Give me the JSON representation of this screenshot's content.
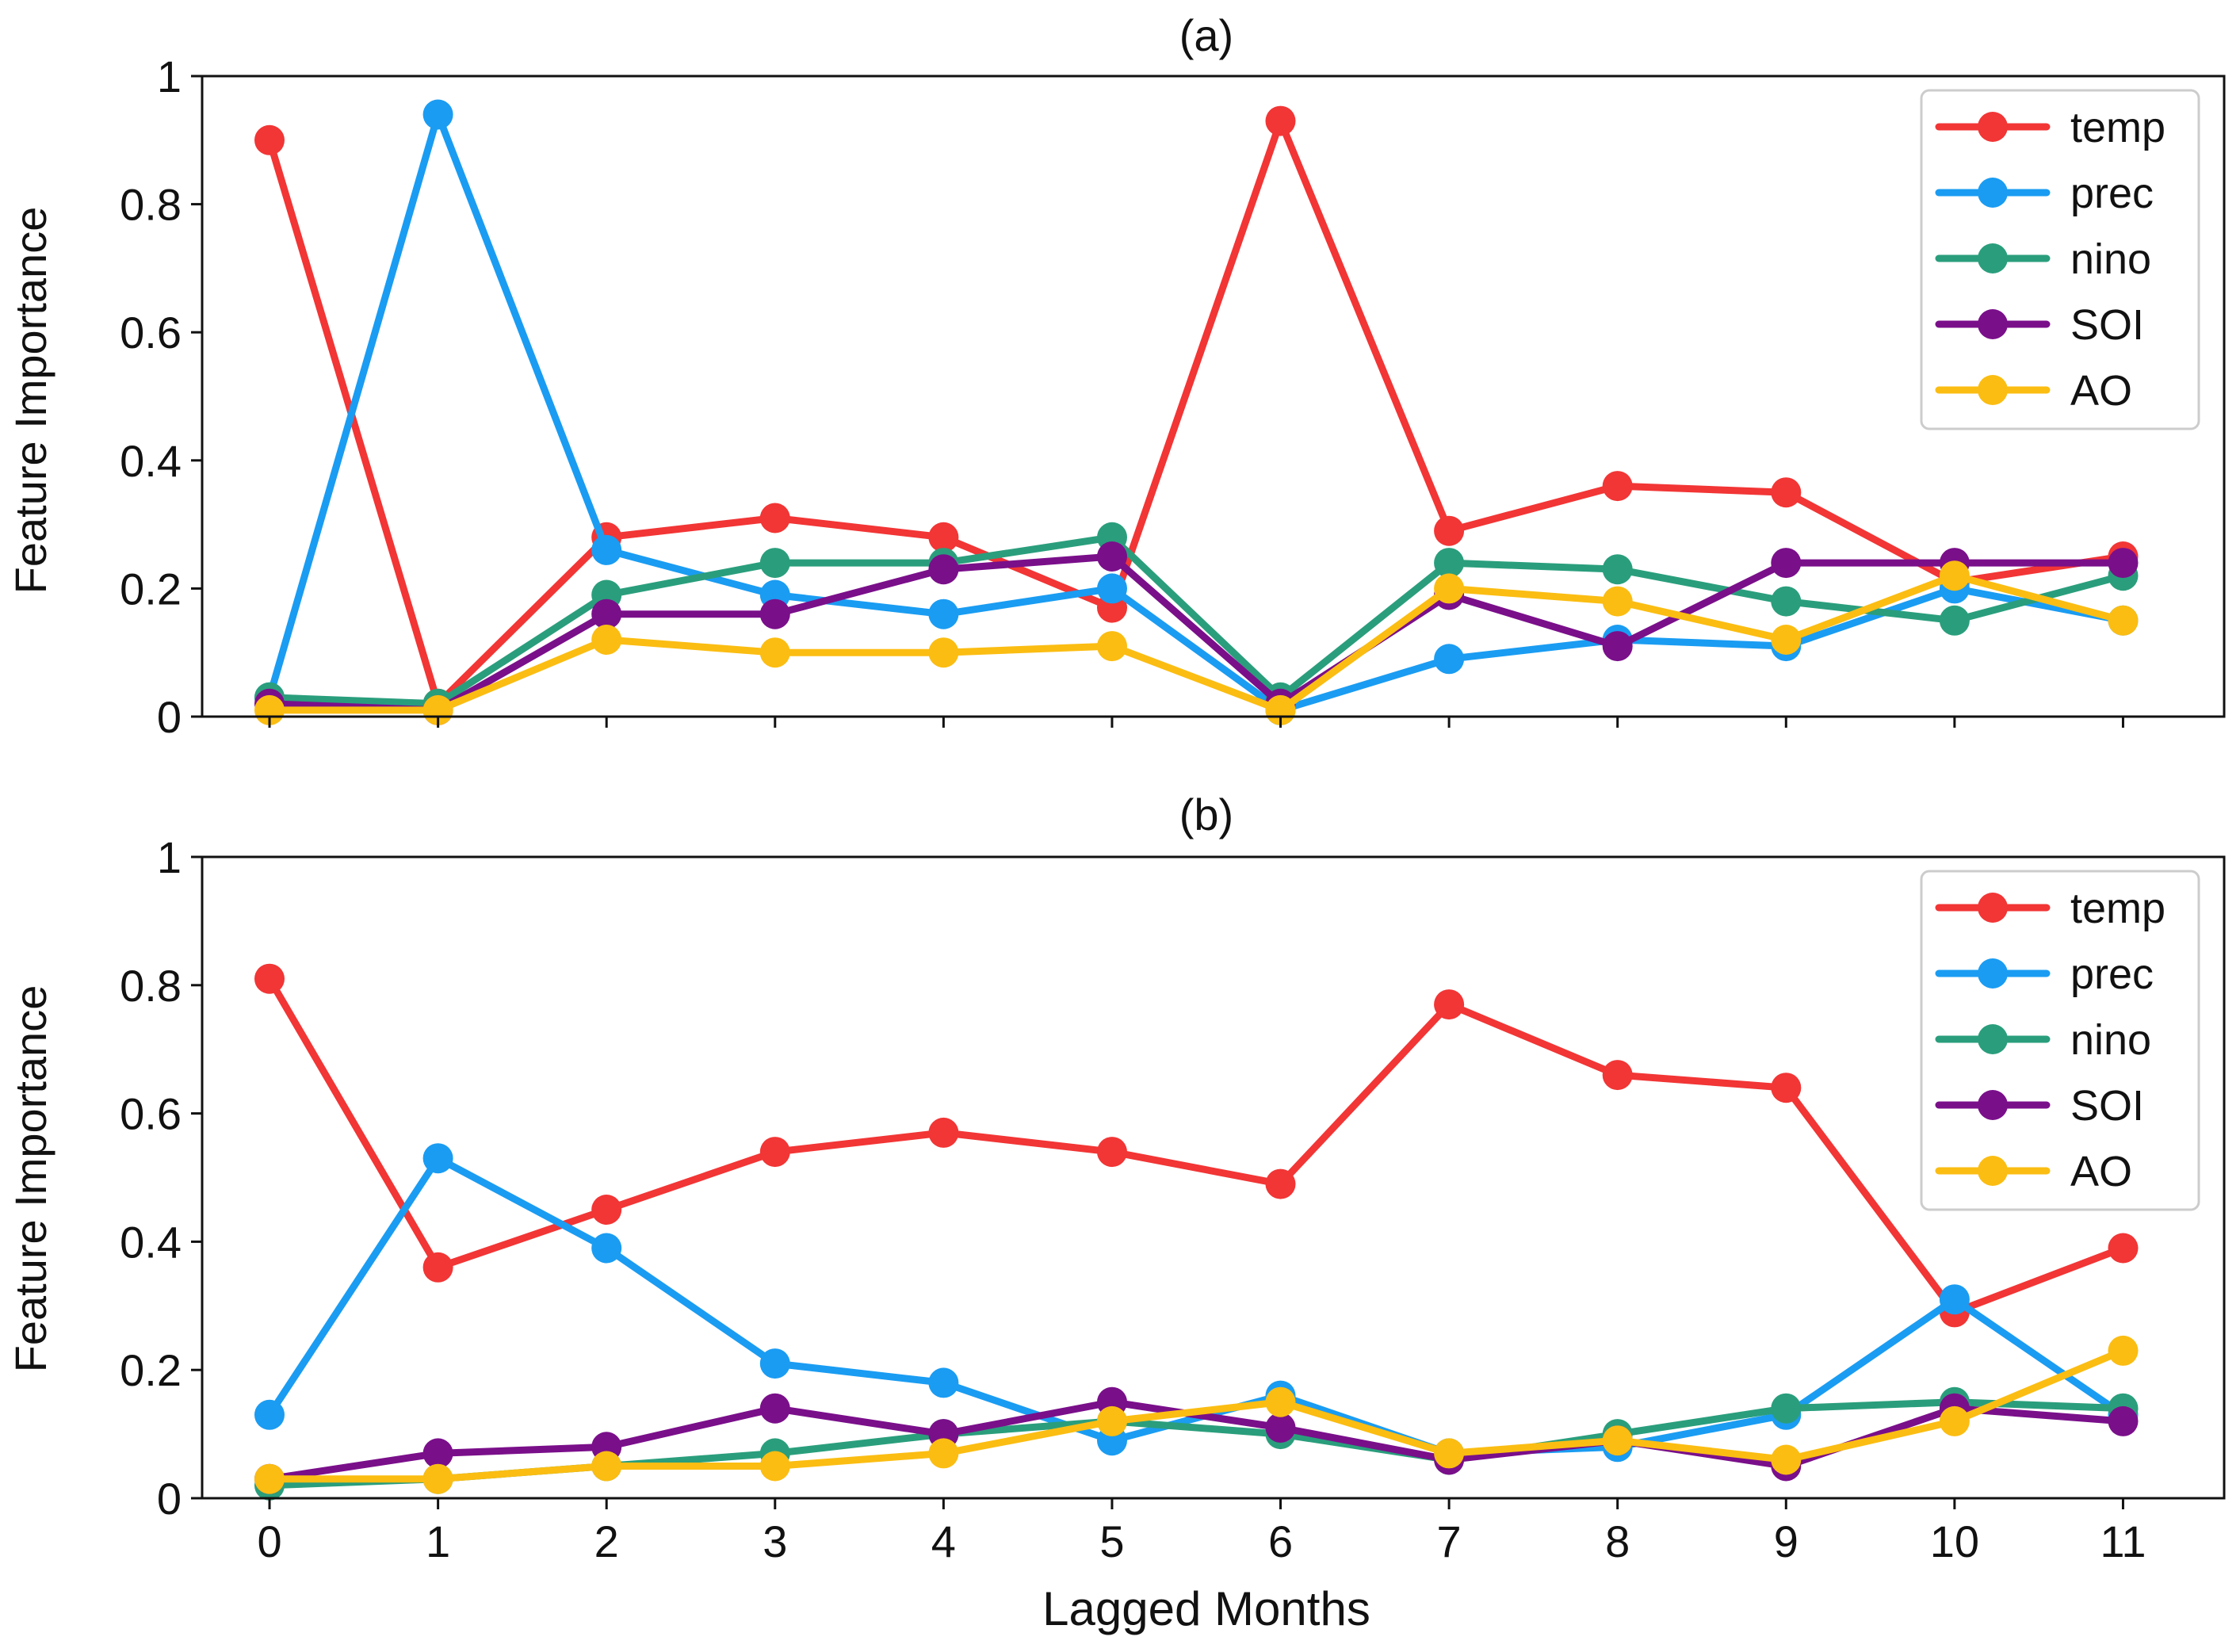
{
  "colors": {
    "temp": "#f23535",
    "prec": "#1a9cf2",
    "nino": "#2a9e7c",
    "SOI": "#7a0f8a",
    "AO": "#fbbd12"
  },
  "chart_data": [
    {
      "type": "line",
      "title": "(a)",
      "xlabel": "",
      "ylabel": "Feature Importance",
      "x": [
        0,
        1,
        2,
        3,
        4,
        5,
        6,
        7,
        8,
        9,
        10,
        11
      ],
      "x_tick_labels": [
        "0",
        "1",
        "2",
        "3",
        "4",
        "5",
        "6",
        "7",
        "8",
        "9",
        "10",
        "11"
      ],
      "show_x_tick_labels": false,
      "xlim": [
        -0.4,
        11.6
      ],
      "ylim": [
        0,
        1
      ],
      "y_ticks": [
        0,
        0.2,
        0.4,
        0.6,
        0.8,
        1
      ],
      "y_tick_labels": [
        "0",
        "0.2",
        "0.4",
        "0.6",
        "0.8",
        "1"
      ],
      "grid": false,
      "legend_position": "top-right",
      "series": [
        {
          "name": "temp",
          "values": [
            0.9,
            0.02,
            0.28,
            0.31,
            0.28,
            0.17,
            0.93,
            0.29,
            0.36,
            0.35,
            0.21,
            0.25
          ]
        },
        {
          "name": "prec",
          "values": [
            0.03,
            0.94,
            0.26,
            0.19,
            0.16,
            0.2,
            0.01,
            0.09,
            0.12,
            0.11,
            0.2,
            0.15
          ]
        },
        {
          "name": "nino",
          "values": [
            0.03,
            0.02,
            0.19,
            0.24,
            0.24,
            0.28,
            0.03,
            0.24,
            0.23,
            0.18,
            0.15,
            0.22
          ]
        },
        {
          "name": "SOI",
          "values": [
            0.02,
            0.01,
            0.16,
            0.16,
            0.23,
            0.25,
            0.02,
            0.19,
            0.11,
            0.24,
            0.24,
            0.24
          ]
        },
        {
          "name": "AO",
          "values": [
            0.01,
            0.01,
            0.12,
            0.1,
            0.1,
            0.11,
            0.01,
            0.2,
            0.18,
            0.12,
            0.22,
            0.15
          ]
        }
      ]
    },
    {
      "type": "line",
      "title": "(b)",
      "xlabel": "Lagged Months",
      "ylabel": "Feature Importance",
      "x": [
        0,
        1,
        2,
        3,
        4,
        5,
        6,
        7,
        8,
        9,
        10,
        11
      ],
      "x_tick_labels": [
        "0",
        "1",
        "2",
        "3",
        "4",
        "5",
        "6",
        "7",
        "8",
        "9",
        "10",
        "11"
      ],
      "show_x_tick_labels": true,
      "xlim": [
        -0.4,
        11.6
      ],
      "ylim": [
        0,
        1
      ],
      "y_ticks": [
        0,
        0.2,
        0.4,
        0.6,
        0.8,
        1
      ],
      "y_tick_labels": [
        "0",
        "0.2",
        "0.4",
        "0.6",
        "0.8",
        "1"
      ],
      "grid": false,
      "legend_position": "top-right",
      "series": [
        {
          "name": "temp",
          "values": [
            0.81,
            0.36,
            0.45,
            0.54,
            0.57,
            0.54,
            0.49,
            0.77,
            0.66,
            0.64,
            0.29,
            0.39
          ]
        },
        {
          "name": "prec",
          "values": [
            0.13,
            0.53,
            0.39,
            0.21,
            0.18,
            0.09,
            0.16,
            0.07,
            0.08,
            0.13,
            0.31,
            0.13
          ]
        },
        {
          "name": "nino",
          "values": [
            0.02,
            0.03,
            0.05,
            0.07,
            0.1,
            0.12,
            0.1,
            0.06,
            0.1,
            0.14,
            0.15,
            0.14
          ]
        },
        {
          "name": "SOI",
          "values": [
            0.03,
            0.07,
            0.08,
            0.14,
            0.1,
            0.15,
            0.11,
            0.06,
            0.09,
            0.05,
            0.14,
            0.12
          ]
        },
        {
          "name": "AO",
          "values": [
            0.03,
            0.03,
            0.05,
            0.05,
            0.07,
            0.12,
            0.15,
            0.07,
            0.09,
            0.06,
            0.12,
            0.23
          ]
        }
      ]
    }
  ]
}
